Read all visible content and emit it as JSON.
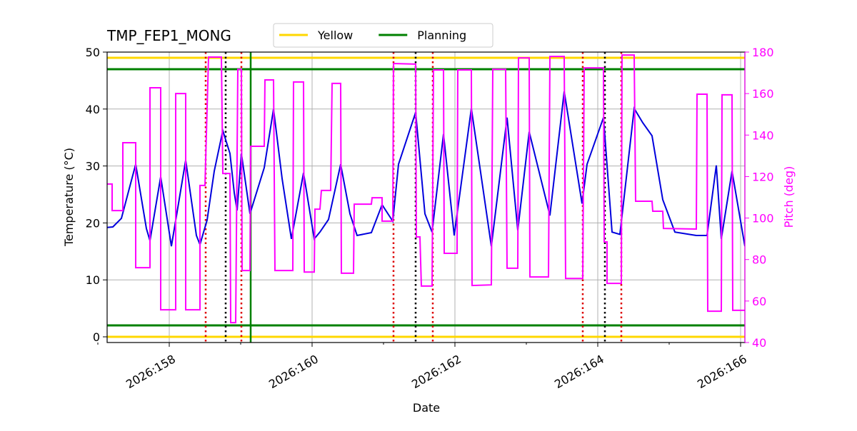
{
  "chart_data": {
    "type": "line",
    "title": "TMP_FEP1_MONG",
    "xlabel": "Date",
    "ylabel": "Temperature (°C)",
    "y2label": "Pitch (deg)",
    "xlim": [
      157.13,
      166.06
    ],
    "ylim": [
      -1,
      50
    ],
    "y2lim": [
      40,
      180
    ],
    "xticks": [
      {
        "value": 158,
        "label": "2026:158"
      },
      {
        "value": 160,
        "label": "2026:160"
      },
      {
        "value": 162,
        "label": "2026:162"
      },
      {
        "value": 164,
        "label": "2026:164"
      },
      {
        "value": 166,
        "label": "2026:166"
      }
    ],
    "xminorticks": [
      157,
      159,
      161,
      163,
      165
    ],
    "yticks": [
      0,
      10,
      20,
      30,
      40,
      50
    ],
    "y2ticks": [
      40,
      60,
      80,
      100,
      120,
      140,
      160,
      180
    ],
    "y2color": "#ff00ff",
    "grid": true,
    "reference_lines": [
      {
        "name": "Yellow",
        "color": "#ffd700",
        "values": [
          0,
          49
        ]
      },
      {
        "name": "Planning",
        "color": "#008000",
        "values": [
          2,
          47
        ]
      }
    ],
    "vlines": [
      {
        "color": "#dd0000",
        "style": "dotted",
        "values": [
          158.51,
          159.01,
          161.14,
          161.69,
          163.79,
          164.33
        ]
      },
      {
        "color": "#000000",
        "style": "dotted",
        "values": [
          158.79,
          161.45,
          164.1
        ]
      },
      {
        "color": "#008000",
        "style": "solid",
        "values": [
          159.14
        ]
      }
    ],
    "series": [
      {
        "color": "#0000dd",
        "x": [
          157.13,
          157.21,
          157.33,
          157.53,
          157.68,
          157.73,
          157.88,
          158.03,
          158.23,
          158.38,
          158.43,
          158.53,
          158.63,
          158.75,
          158.85,
          158.91,
          158.95,
          159.01,
          159.13,
          159.33,
          159.46,
          159.58,
          159.71,
          159.88,
          160.03,
          160.11,
          160.23,
          160.4,
          160.53,
          160.63,
          160.83,
          160.98,
          161.13,
          161.21,
          161.45,
          161.58,
          161.68,
          161.84,
          161.99,
          162.23,
          162.51,
          162.73,
          162.88,
          163.04,
          163.33,
          163.53,
          163.78,
          163.85,
          164.08,
          164.2,
          164.31,
          164.51,
          164.63,
          164.76,
          164.91,
          165.08,
          165.38,
          165.53,
          165.66,
          165.73,
          165.88,
          166.06
        ],
        "values": [
          19.2,
          19.3,
          20.8,
          30.3,
          19.0,
          16.9,
          28.1,
          15.9,
          31.0,
          17.8,
          16.2,
          20.5,
          29.1,
          36.2,
          32.2,
          25.3,
          22.2,
          32.2,
          21.6,
          29.7,
          40.0,
          27.8,
          17.2,
          28.8,
          17.2,
          18.4,
          20.6,
          30.3,
          21.6,
          17.8,
          18.3,
          23.2,
          20.3,
          30.3,
          39.4,
          21.6,
          18.4,
          35.6,
          17.8,
          40.1,
          15.9,
          38.5,
          18.7,
          36.0,
          21.3,
          43.1,
          23.4,
          30.3,
          38.5,
          18.4,
          18.0,
          40.1,
          37.6,
          35.3,
          24.1,
          18.4,
          17.8,
          17.8,
          30.1,
          17.2,
          29.1,
          15.9
        ]
      },
      {
        "color": "#ff00ff",
        "axis": "y2",
        "x": [
          157.13,
          157.2,
          157.2,
          157.35,
          157.35,
          157.53,
          157.53,
          157.73,
          157.73,
          157.88,
          157.88,
          158.09,
          158.09,
          158.23,
          158.23,
          158.43,
          158.43,
          158.5,
          158.55,
          158.73,
          158.75,
          158.85,
          158.86,
          158.93,
          158.96,
          159.01,
          159.02,
          159.13,
          159.14,
          159.33,
          159.34,
          159.46,
          159.48,
          159.73,
          159.74,
          159.88,
          159.89,
          160.03,
          160.04,
          160.11,
          160.13,
          160.26,
          160.28,
          160.4,
          160.41,
          160.58,
          160.59,
          160.83,
          160.84,
          160.98,
          160.98,
          161.13,
          161.14,
          161.45,
          161.46,
          161.51,
          161.53,
          161.68,
          161.7,
          161.84,
          161.85,
          162.03,
          162.04,
          162.23,
          162.24,
          162.51,
          162.53,
          162.71,
          162.73,
          162.88,
          162.89,
          163.04,
          163.05,
          163.31,
          163.33,
          163.53,
          163.55,
          163.79,
          163.81,
          164.08,
          164.09,
          164.13,
          164.13,
          164.33,
          164.34,
          164.51,
          164.53,
          164.76,
          164.77,
          164.91,
          164.92,
          165.38,
          165.39,
          165.53,
          165.54,
          165.73,
          165.74,
          165.88,
          165.89,
          166.06
        ],
        "values": [
          116.4,
          116.4,
          103.6,
          103.6,
          136.3,
          136.3,
          76.1,
          76.1,
          162.8,
          162.8,
          55.8,
          55.8,
          160.0,
          160.0,
          55.8,
          55.8,
          115.7,
          115.7,
          177.6,
          177.6,
          121.5,
          121.5,
          49.6,
          49.6,
          171.7,
          171.7,
          74.7,
          74.7,
          134.6,
          134.6,
          166.6,
          166.6,
          74.7,
          74.7,
          165.6,
          165.6,
          74.0,
          74.0,
          104.3,
          104.3,
          113.3,
          113.3,
          164.9,
          164.9,
          73.4,
          73.4,
          106.7,
          106.7,
          109.8,
          109.8,
          98.5,
          98.5,
          174.5,
          174.2,
          90.9,
          90.9,
          67.2,
          67.2,
          171.4,
          171.4,
          83.0,
          83.0,
          171.4,
          171.4,
          67.5,
          67.8,
          171.7,
          171.7,
          75.8,
          75.8,
          177.2,
          177.2,
          71.6,
          71.6,
          177.9,
          177.9,
          70.9,
          70.9,
          172.4,
          172.4,
          88.5,
          88.5,
          68.5,
          68.5,
          178.6,
          178.6,
          108.1,
          108.1,
          103.3,
          103.3,
          95.0,
          94.7,
          159.7,
          159.7,
          55.1,
          55.1,
          159.4,
          159.4,
          55.5,
          55.5
        ]
      }
    ]
  }
}
